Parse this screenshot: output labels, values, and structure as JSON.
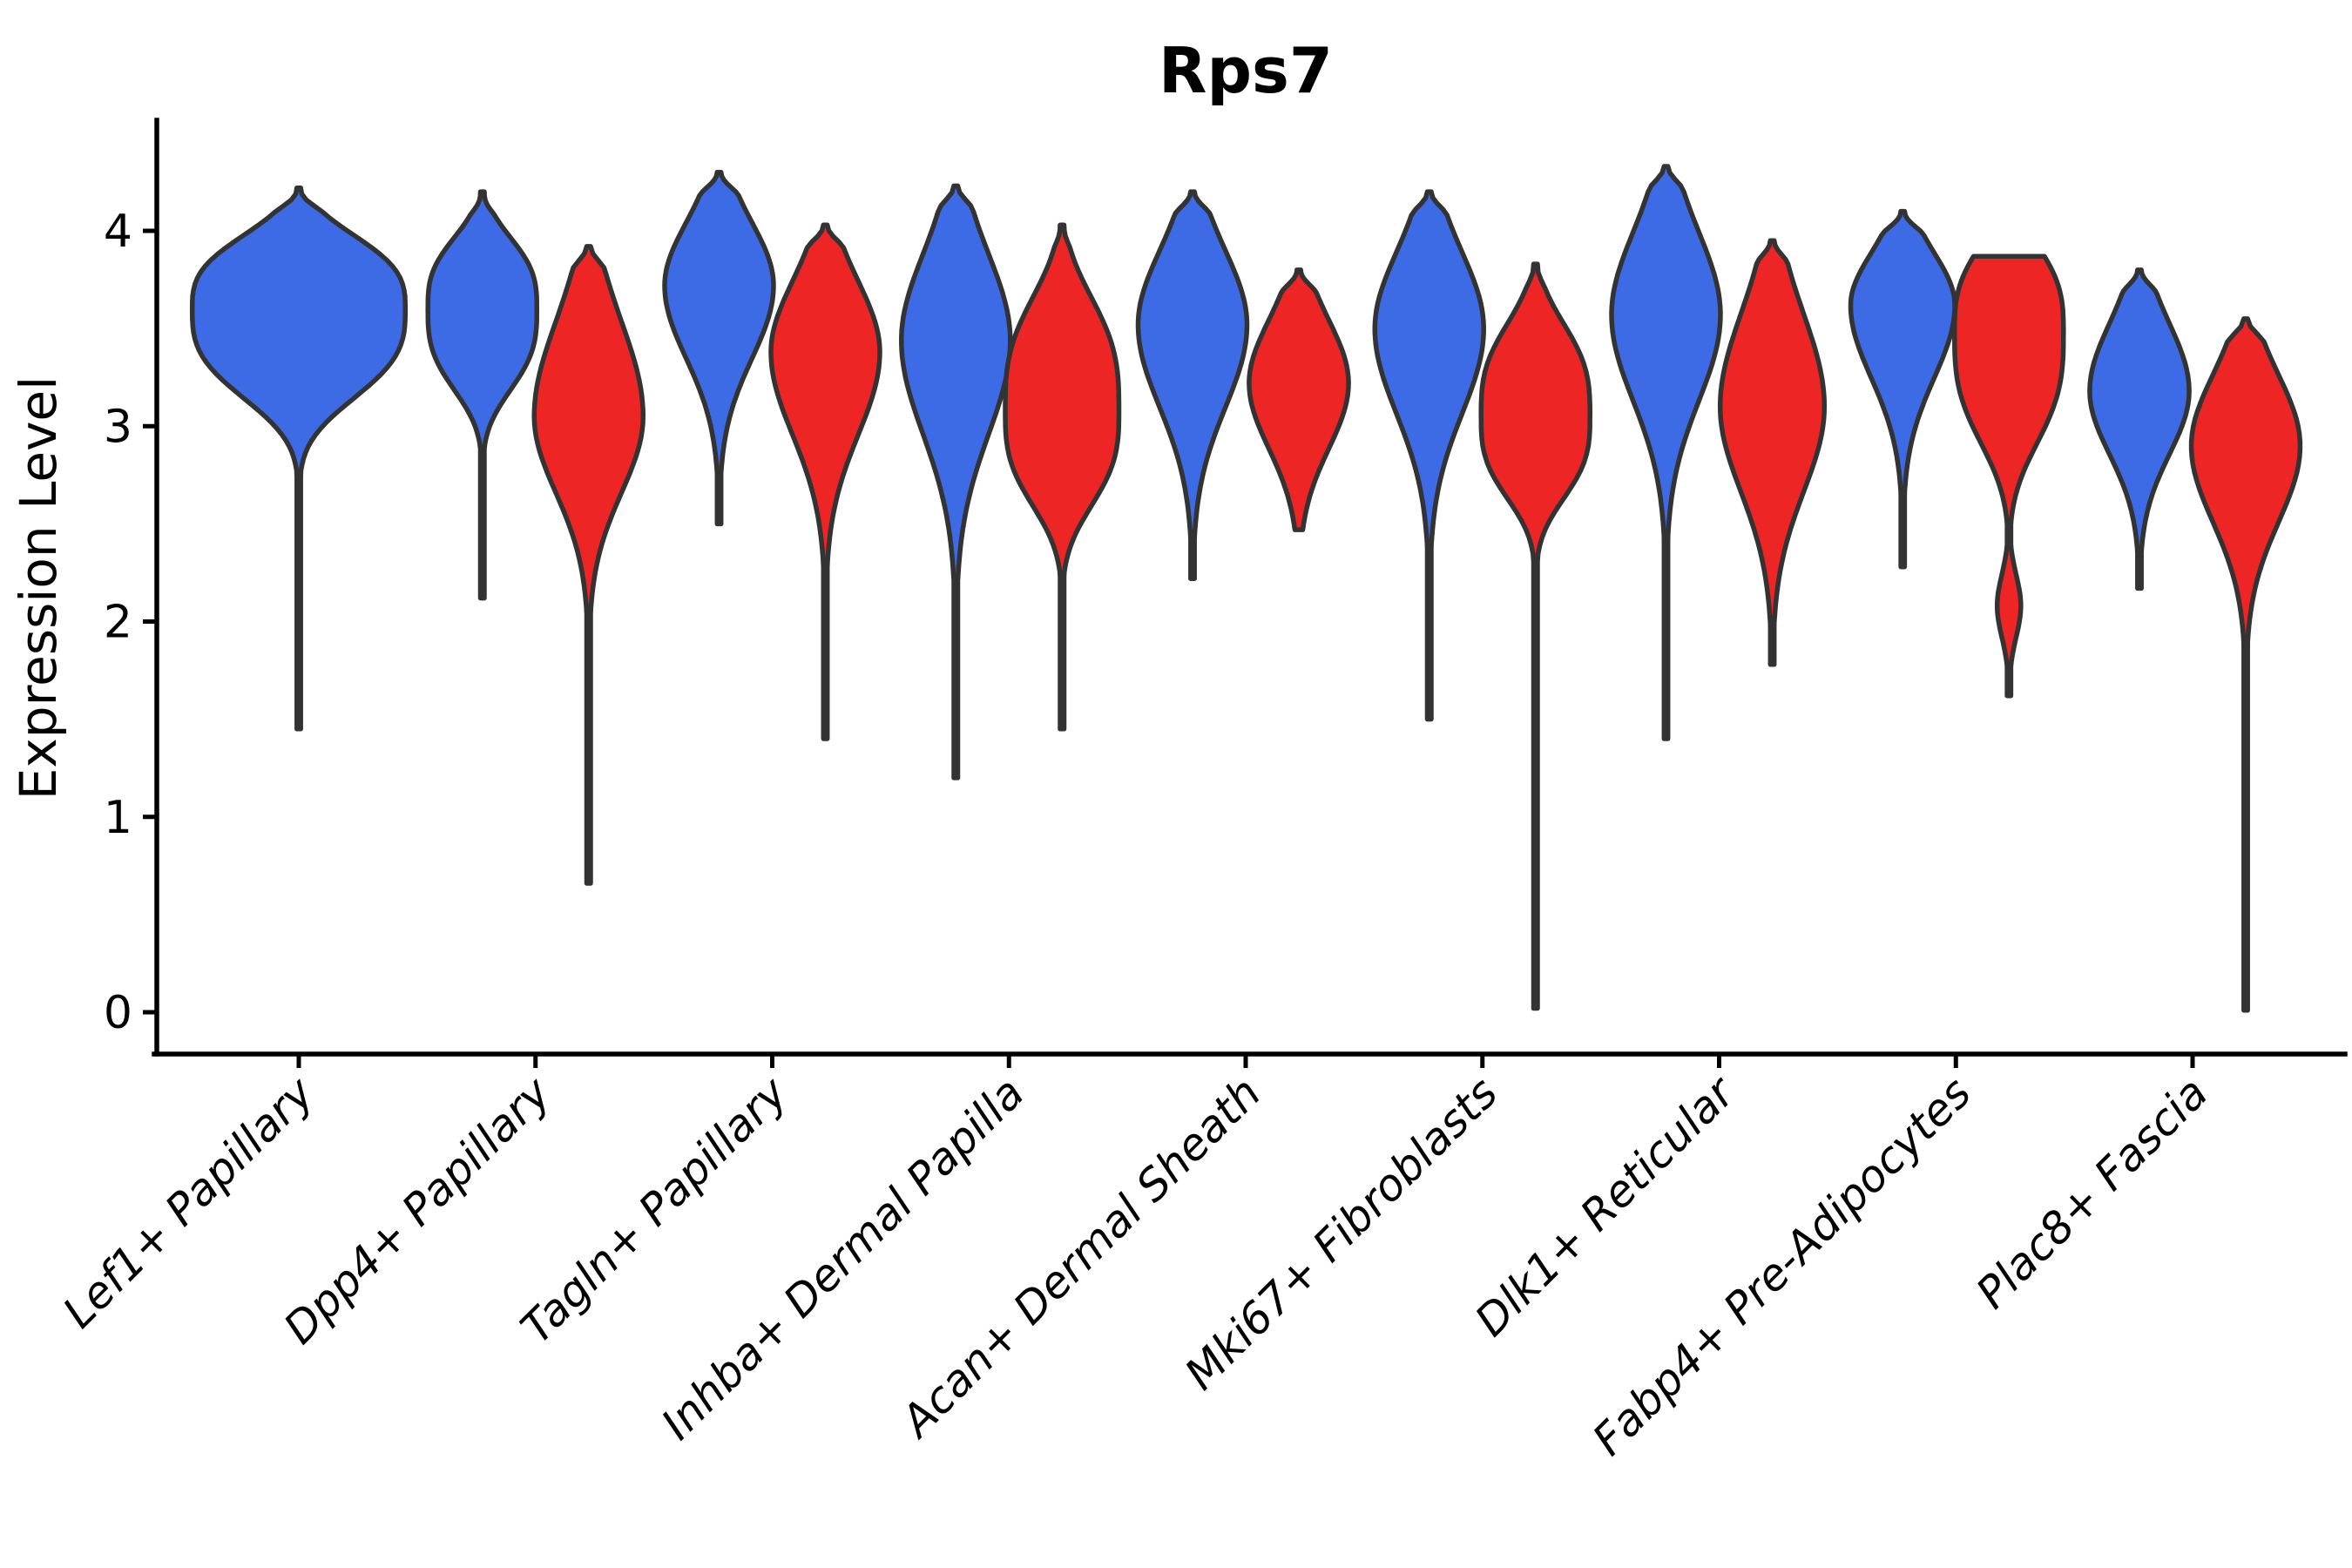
{
  "chart_data": {
    "type": "violin",
    "title": "Rps7",
    "ylabel": "Expression Level",
    "xlabel": "",
    "ylim": [
      -0.2,
      4.55
    ],
    "yticks": [
      0,
      1,
      2,
      3,
      4
    ],
    "ytick_labels": [
      "0",
      "1",
      "2",
      "3",
      "4"
    ],
    "grid": false,
    "legend": null,
    "x_tick_rotation_deg": 45,
    "colors": {
      "blue": "#3D6BE6",
      "red": "#EE2525",
      "edge": "#333333",
      "background": "#FFFFFF",
      "text": "#000000"
    },
    "categories": [
      "Lef1+ Papillary",
      "Dpp4+ Papillary",
      "Tagln+ Papillary",
      "Inhba+ Dermal Papilla",
      "Acan+ Dermal Sheath",
      "Mki67+ Fibroblasts",
      "Dlk1+ Reticular",
      "Fabp4+ Pre-Adipocytes",
      "Plac8+ Fascia"
    ],
    "series": [
      {
        "name": "series-blue",
        "color": "#3D6BE6",
        "violins": [
          {
            "pos": "center",
            "top": 4.22,
            "mode": 3.6,
            "pinch": 2.85,
            "bottom": 1.45,
            "width": 0.9,
            "pow": 3
          },
          {
            "pos": "left",
            "top": 4.2,
            "mode": 3.6,
            "pinch": 2.92,
            "bottom": 2.12,
            "width": 0.46,
            "pow": 3
          },
          {
            "pos": "left",
            "top": 4.3,
            "mode": 3.72,
            "pinch": 3.05,
            "bottom": 2.5,
            "width": 0.46,
            "pow": 2
          },
          {
            "pos": "left",
            "top": 4.23,
            "mode": 3.44,
            "pinch": 2.58,
            "bottom": 1.2,
            "width": 0.46,
            "pow": 2
          },
          {
            "pos": "left",
            "top": 4.2,
            "mode": 3.52,
            "pinch": 2.76,
            "bottom": 2.22,
            "width": 0.46,
            "pow": 2
          },
          {
            "pos": "left",
            "top": 4.2,
            "mode": 3.5,
            "pinch": 2.72,
            "bottom": 1.5,
            "width": 0.46,
            "pow": 2
          },
          {
            "pos": "left",
            "top": 4.33,
            "mode": 3.57,
            "pinch": 2.78,
            "bottom": 1.4,
            "width": 0.46,
            "pow": 2
          },
          {
            "pos": "left",
            "top": 4.1,
            "mode": 3.62,
            "pinch": 2.95,
            "bottom": 2.28,
            "width": 0.44,
            "pow": 2
          },
          {
            "pos": "left",
            "top": 3.8,
            "mode": 3.18,
            "pinch": 2.6,
            "bottom": 2.17,
            "width": 0.42,
            "pow": 2
          }
        ]
      },
      {
        "name": "series-red",
        "color": "#EE2525",
        "violins": [
          null,
          {
            "pos": "right",
            "top": 3.92,
            "mode": 3.05,
            "pinch": 2.35,
            "bottom": 0.66,
            "width": 0.46,
            "pow": 2
          },
          {
            "pos": "right",
            "top": 4.03,
            "mode": 3.38,
            "pinch": 2.62,
            "bottom": 1.4,
            "width": 0.46,
            "pow": 2
          },
          {
            "pos": "right",
            "top": 4.03,
            "mode": 3.08,
            "pinch": 2.28,
            "bottom": 1.45,
            "width": 0.48,
            "pow": 3
          },
          {
            "pos": "right",
            "top": 3.8,
            "mode": 3.22,
            "pinch": 2.62,
            "bottom": 2.47,
            "width": 0.42,
            "pow": 2
          },
          {
            "pos": "right",
            "top": 3.83,
            "mode": 3.05,
            "pinch": 2.36,
            "bottom": 0.02,
            "width": 0.46,
            "pow": 3
          },
          {
            "pos": "right",
            "top": 3.95,
            "mode": 3.1,
            "pinch": 2.32,
            "bottom": 1.78,
            "width": 0.44,
            "pow": 2
          },
          {
            "pos": "right",
            "top": 3.87,
            "mode": 3.48,
            "pinch": 2.55,
            "bottom": 1.62,
            "width": 0.46,
            "pow": 3,
            "blunt_top": true,
            "bump": [
              2.08,
              0.1
            ]
          },
          {
            "pos": "right",
            "top": 3.55,
            "mode": 2.9,
            "pinch": 2.2,
            "bottom": 0.01,
            "width": 0.46,
            "pow": 2
          }
        ]
      }
    ]
  }
}
